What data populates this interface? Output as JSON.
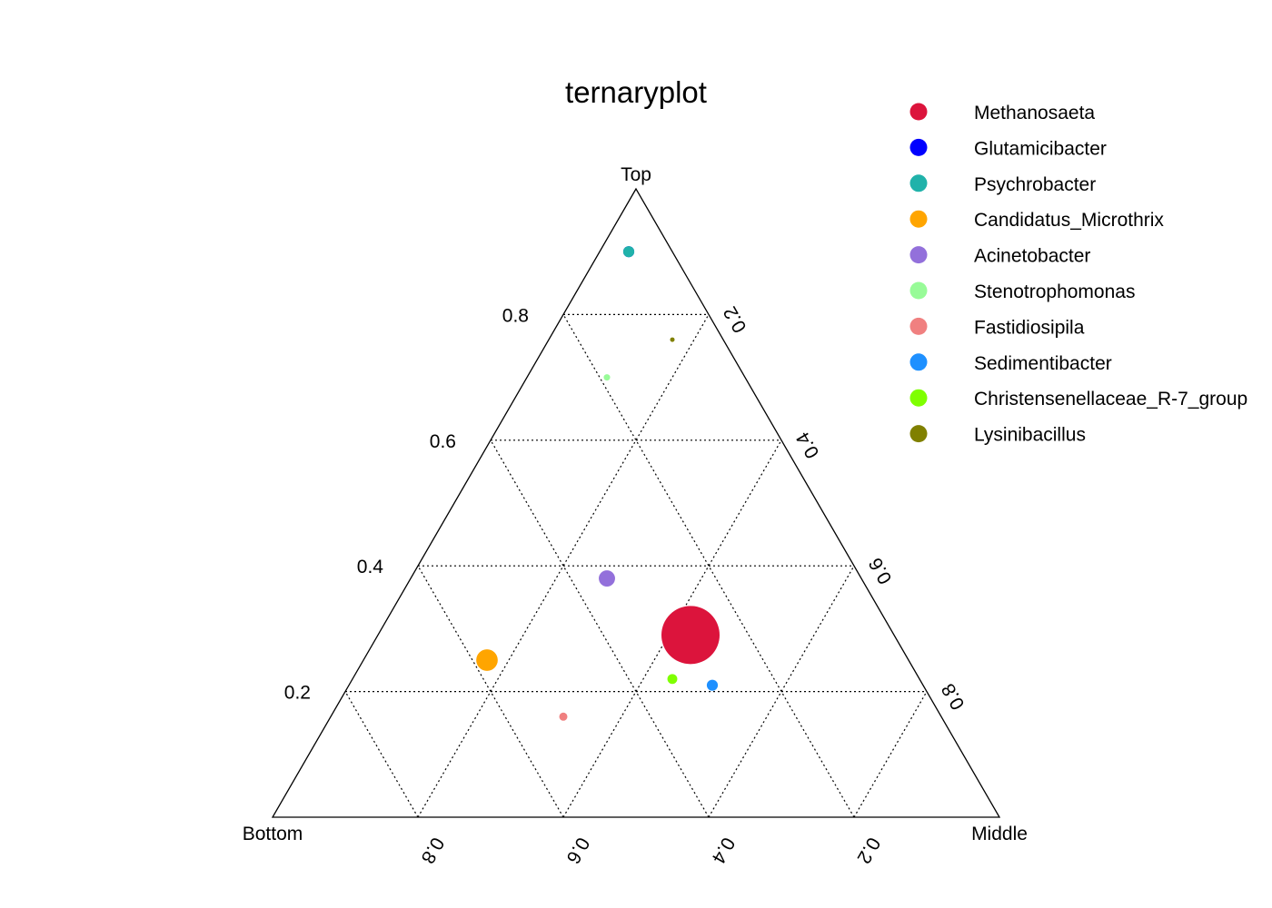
{
  "chart_data": {
    "type": "scatter",
    "subtype": "ternary",
    "title": "ternaryplot",
    "axes": {
      "top": "Top",
      "bottom_left": "Bottom",
      "bottom_right": "Middle"
    },
    "ticks": {
      "top": [
        "0.2",
        "0.4",
        "0.6",
        "0.8"
      ],
      "middle": [
        "0.2",
        "0.4",
        "0.6",
        "0.8"
      ],
      "bottom": [
        "0.8",
        "0.6",
        "0.4",
        "0.2"
      ]
    },
    "grid": true,
    "legend_position": "top-right",
    "points": [
      {
        "name": "Methanosaeta",
        "color": "#DC143C",
        "top": 0.29,
        "middle": 0.43,
        "bottom": 0.28,
        "relative_size": 1.0
      },
      {
        "name": "Glutamicibacter",
        "color": "#0000FF",
        "top": 0.9,
        "middle": 0.04,
        "bottom": 0.06,
        "relative_size": 0.19
      },
      {
        "name": "Psychrobacter",
        "color": "#20B2AA",
        "top": 0.9,
        "middle": 0.04,
        "bottom": 0.06,
        "relative_size": 0.19
      },
      {
        "name": "Candidatus_Microthrix",
        "color": "#FFA500",
        "top": 0.25,
        "middle": 0.17,
        "bottom": 0.58,
        "relative_size": 0.37
      },
      {
        "name": "Acinetobacter",
        "color": "#9370DB",
        "top": 0.38,
        "middle": 0.27,
        "bottom": 0.35,
        "relative_size": 0.28
      },
      {
        "name": "Stenotrophomonas",
        "color": "#98FB98",
        "top": 0.7,
        "middle": 0.11,
        "bottom": 0.19,
        "relative_size": 0.11
      },
      {
        "name": "Fastidiosipila",
        "color": "#F08080",
        "top": 0.16,
        "middle": 0.32,
        "bottom": 0.52,
        "relative_size": 0.14
      },
      {
        "name": "Sedimentibacter",
        "color": "#1E90FF",
        "top": 0.21,
        "middle": 0.5,
        "bottom": 0.29,
        "relative_size": 0.19
      },
      {
        "name": "Christensenellaceae_R-7_group",
        "color": "#7FFF00",
        "top": 0.22,
        "middle": 0.44,
        "bottom": 0.34,
        "relative_size": 0.17
      },
      {
        "name": "Lysinibacillus",
        "color": "#808000",
        "top": 0.76,
        "middle": 0.17,
        "bottom": 0.07,
        "relative_size": 0.05
      }
    ]
  }
}
